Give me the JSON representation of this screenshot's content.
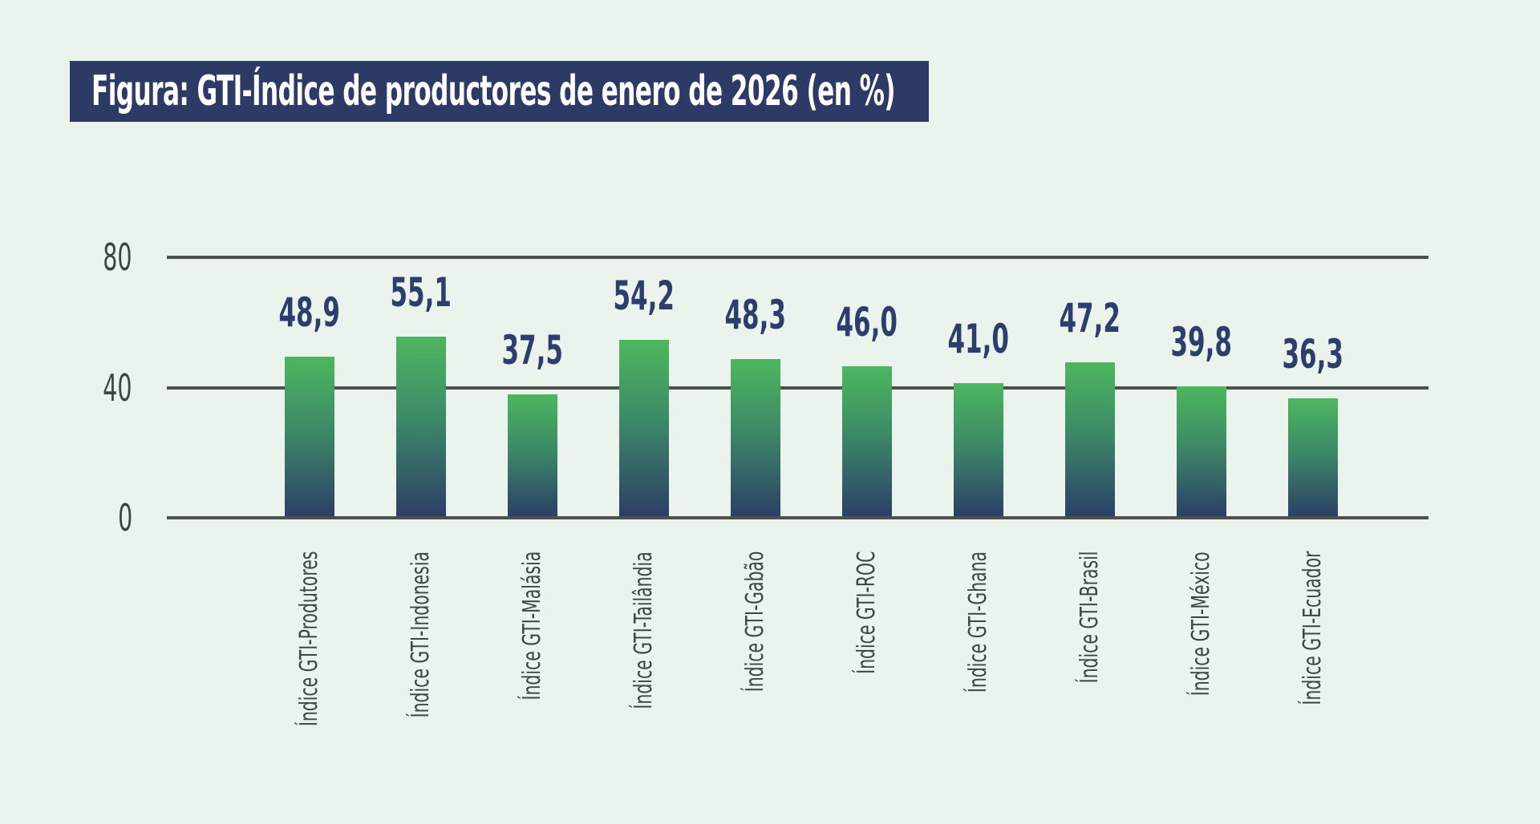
{
  "title": {
    "text": "Figura: GTI-Índice de productores de enero de 2026 (en %)"
  },
  "chart_data": {
    "type": "bar",
    "title": "Figura: GTI-Índice de productores de enero de 2026 (en %)",
    "categories": [
      "Índice GTI-Produtores",
      "Índice GTI-Indonesia",
      "Índice GTI-Malásia",
      "Índice GTI-Tailândia",
      "Índice GTI-Gabão",
      "Índice GTI-ROC",
      "Índice GTI-Ghana",
      "Índice GTI-Brasil",
      "Índice GTI-México",
      "Índice GTI-Ecuador"
    ],
    "values": [
      48.9,
      55.1,
      37.5,
      54.2,
      48.3,
      46.0,
      41.0,
      47.2,
      39.8,
      36.3
    ],
    "value_labels": [
      "48,9",
      "55,1",
      "37,5",
      "54,2",
      "48,3",
      "46,0",
      "41,0",
      "47,2",
      "39,8",
      "36,3"
    ],
    "unit": "%",
    "y_ticks": [
      {
        "value": 0,
        "label": "0"
      },
      {
        "value": 40,
        "label": "40"
      },
      {
        "value": 80,
        "label": "80"
      }
    ],
    "ylim": [
      0,
      93
    ],
    "grid": "horizontal",
    "legend": "none",
    "category_label_rotation": -90,
    "colors": {
      "background": "#eaf3ec",
      "banner": "#2d3a66",
      "title_text": "#ffffff",
      "bar_gradient_top": "#4cb75f",
      "bar_gradient_bottom": "#2c3f67",
      "value_label": "#2e3e6c",
      "axis_text": "#3e4542",
      "gridline": "#4b504e"
    }
  }
}
